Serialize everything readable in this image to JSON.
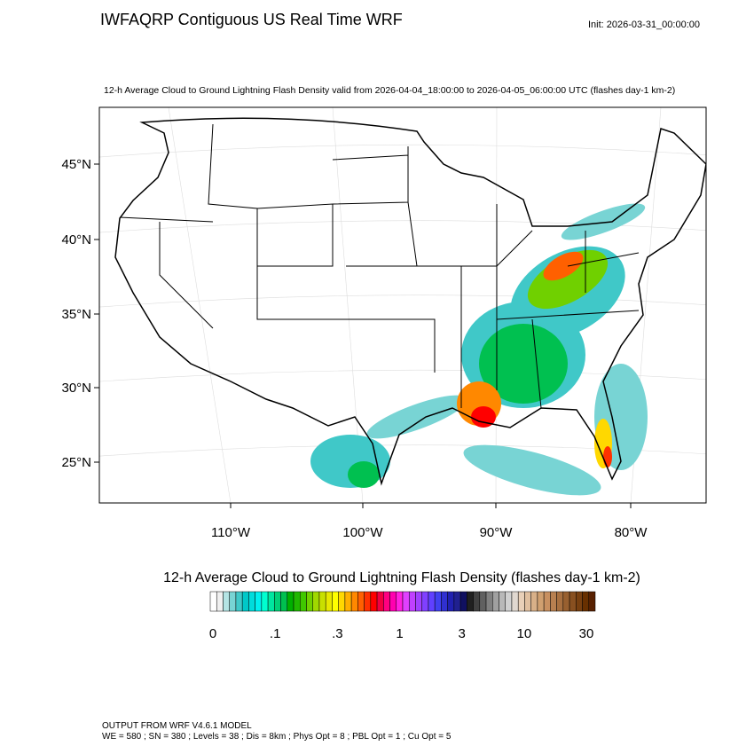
{
  "header": {
    "title": "IWFAQRP Contiguous US Real Time WRF",
    "init": "Init: 2026-03-31_00:00:00",
    "subtitle": "12-h Average Cloud to Ground Lightning Flash Density valid from 2026-04-04_18:00:00 to 2026-04-05_06:00:00 UTC   (flashes day-1 km-2)"
  },
  "map": {
    "latitude_labels": [
      "45°N",
      "40°N",
      "35°N",
      "30°N",
      "25°N"
    ],
    "longitude_labels": [
      "110°W",
      "100°W",
      "90°W",
      "80°W"
    ]
  },
  "colorbar": {
    "title": "12-h Average Cloud to Ground Lightning Flash Density  (flashes day-1 km-2)",
    "labels": [
      "0",
      ".1",
      ".3",
      "1",
      "3",
      "10",
      "30"
    ],
    "colors": [
      "#ffffff",
      "#f0f0f0",
      "#b4e4e4",
      "#78d4d4",
      "#40c8c8",
      "#00c8c8",
      "#00dcdc",
      "#00f0f0",
      "#00ffd0",
      "#00e6a0",
      "#00d078",
      "#00c050",
      "#00b000",
      "#20b800",
      "#40c800",
      "#70d000",
      "#a0d800",
      "#c8e000",
      "#e8e800",
      "#ffff00",
      "#ffd800",
      "#ffb000",
      "#ff8800",
      "#ff6000",
      "#ff3000",
      "#ff0000",
      "#f00040",
      "#ff0080",
      "#ff00b0",
      "#ff20e0",
      "#e040ff",
      "#c040ff",
      "#a040ff",
      "#8040ff",
      "#6040ff",
      "#4040f0",
      "#3030d0",
      "#2020b0",
      "#202090",
      "#101060",
      "#202020",
      "#404040",
      "#606060",
      "#808080",
      "#a0a0a0",
      "#b8b8b8",
      "#d0d0d0",
      "#e0d8d0",
      "#e8d0b8",
      "#e0c0a0",
      "#d8b088",
      "#d0a070",
      "#c89060",
      "#b88050",
      "#a87040",
      "#986030",
      "#885020",
      "#784010",
      "#683000",
      "#582000"
    ]
  },
  "footer": [
    "OUTPUT FROM WRF V4.6.1 MODEL",
    "WE = 580 ; SN = 380 ; Levels = 38 ; Dis = 8km ; Phys Opt = 8 ; PBL Opt = 1 ; Cu Opt = 5"
  ]
}
